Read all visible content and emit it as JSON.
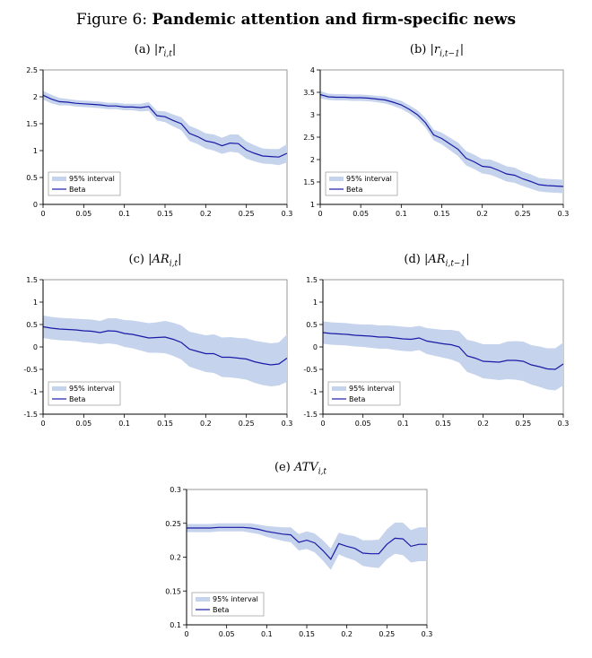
{
  "figure": {
    "label": "Figure 6:",
    "title": "Pandemic attention and firm-specific news"
  },
  "panels": [
    {
      "tag": "(a)",
      "bar": "|",
      "var": "r",
      "sub": "i,t"
    },
    {
      "tag": "(b)",
      "bar": "|",
      "var": "r",
      "sub": "i,t−1"
    },
    {
      "tag": "(c)",
      "bar": "|",
      "var": "AR",
      "sub": "i,t"
    },
    {
      "tag": "(d)",
      "bar": "|",
      "var": "AR",
      "sub": "i,t−1"
    },
    {
      "tag": "(e)",
      "bar": "",
      "var": "ATV",
      "sub": "i,t"
    }
  ],
  "chart_data": [
    {
      "type": "line",
      "title": "(a) |r_{i,t}|",
      "xlim": [
        0,
        0.3
      ],
      "ylim": [
        0,
        2.5
      ],
      "xticks": [
        "0",
        "0.05",
        "0.1",
        "0.15",
        "0.2",
        "0.25",
        "0.3"
      ],
      "yticks": [
        "0",
        "0.5",
        "1",
        "1.5",
        "2",
        "2.5"
      ],
      "x": [
        0,
        0.01,
        0.02,
        0.03,
        0.04,
        0.05,
        0.06,
        0.07,
        0.08,
        0.09,
        0.1,
        0.11,
        0.12,
        0.13,
        0.14,
        0.15,
        0.16,
        0.17,
        0.18,
        0.19,
        0.2,
        0.21,
        0.22,
        0.23,
        0.24,
        0.25,
        0.26,
        0.27,
        0.28,
        0.29,
        0.3
      ],
      "series": [
        {
          "name": "Beta",
          "values": [
            2.03,
            1.96,
            1.91,
            1.9,
            1.88,
            1.87,
            1.86,
            1.85,
            1.83,
            1.83,
            1.81,
            1.81,
            1.8,
            1.82,
            1.65,
            1.63,
            1.56,
            1.5,
            1.32,
            1.26,
            1.18,
            1.15,
            1.09,
            1.14,
            1.13,
            1.01,
            0.95,
            0.9,
            0.89,
            0.88,
            0.95
          ]
        },
        {
          "name": "95% interval",
          "lower": [
            1.95,
            1.88,
            1.84,
            1.84,
            1.82,
            1.81,
            1.8,
            1.79,
            1.77,
            1.77,
            1.75,
            1.75,
            1.73,
            1.74,
            1.56,
            1.53,
            1.45,
            1.38,
            1.18,
            1.12,
            1.04,
            1.0,
            0.94,
            0.98,
            0.96,
            0.85,
            0.8,
            0.76,
            0.75,
            0.73,
            0.78
          ],
          "upper": [
            2.11,
            2.04,
            1.98,
            1.96,
            1.94,
            1.93,
            1.92,
            1.91,
            1.89,
            1.89,
            1.87,
            1.87,
            1.87,
            1.9,
            1.74,
            1.73,
            1.67,
            1.62,
            1.46,
            1.4,
            1.32,
            1.3,
            1.24,
            1.3,
            1.3,
            1.17,
            1.1,
            1.04,
            1.03,
            1.03,
            1.12
          ]
        }
      ],
      "legend": [
        "95% interval",
        "Beta"
      ],
      "legend_position": "bottom-left"
    },
    {
      "type": "line",
      "title": "(b) |r_{i,t−1}|",
      "xlim": [
        0,
        0.3
      ],
      "ylim": [
        1,
        4
      ],
      "xticks": [
        "0",
        "0.05",
        "0.1",
        "0.15",
        "0.2",
        "0.25",
        "0.3"
      ],
      "yticks": [
        "1",
        "1.5",
        "2",
        "2.5",
        "3",
        "3.5",
        "4"
      ],
      "x": [
        0,
        0.01,
        0.02,
        0.03,
        0.04,
        0.05,
        0.06,
        0.07,
        0.08,
        0.09,
        0.1,
        0.11,
        0.12,
        0.13,
        0.14,
        0.15,
        0.16,
        0.17,
        0.18,
        0.19,
        0.2,
        0.21,
        0.22,
        0.23,
        0.24,
        0.25,
        0.26,
        0.27,
        0.28,
        0.29,
        0.3
      ],
      "series": [
        {
          "name": "Beta",
          "values": [
            3.45,
            3.4,
            3.39,
            3.39,
            3.38,
            3.38,
            3.37,
            3.35,
            3.33,
            3.28,
            3.22,
            3.12,
            3.0,
            2.82,
            2.55,
            2.47,
            2.35,
            2.23,
            2.03,
            1.95,
            1.85,
            1.83,
            1.76,
            1.68,
            1.65,
            1.57,
            1.51,
            1.44,
            1.42,
            1.41,
            1.4
          ]
        },
        {
          "name": "95% interval",
          "lower": [
            3.37,
            3.33,
            3.32,
            3.32,
            3.31,
            3.31,
            3.3,
            3.28,
            3.25,
            3.2,
            3.13,
            3.03,
            2.9,
            2.71,
            2.43,
            2.34,
            2.21,
            2.08,
            1.87,
            1.79,
            1.69,
            1.66,
            1.59,
            1.51,
            1.48,
            1.41,
            1.35,
            1.29,
            1.27,
            1.26,
            1.25
          ]
        },
        {
          "name": "95% interval upper",
          "upper": [
            3.53,
            3.47,
            3.46,
            3.46,
            3.45,
            3.45,
            3.44,
            3.42,
            3.41,
            3.36,
            3.31,
            3.21,
            3.1,
            2.93,
            2.67,
            2.6,
            2.49,
            2.38,
            2.19,
            2.11,
            2.01,
            2.0,
            1.93,
            1.85,
            1.82,
            1.73,
            1.67,
            1.59,
            1.57,
            1.56,
            1.55
          ]
        }
      ],
      "legend": [
        "95% interval",
        "Beta"
      ],
      "legend_position": "bottom-left"
    },
    {
      "type": "line",
      "title": "(c) |AR_{i,t}|",
      "xlim": [
        0,
        0.3
      ],
      "ylim": [
        -1.5,
        1.5
      ],
      "xticks": [
        "0",
        "0.05",
        "0.1",
        "0.15",
        "0.2",
        "0.25",
        "0.3"
      ],
      "yticks": [
        "-1.5",
        "-1",
        "-0.5",
        "0",
        "0.5",
        "1",
        "1.5"
      ],
      "x": [
        0,
        0.01,
        0.02,
        0.03,
        0.04,
        0.05,
        0.06,
        0.07,
        0.08,
        0.09,
        0.1,
        0.11,
        0.12,
        0.13,
        0.14,
        0.15,
        0.16,
        0.17,
        0.18,
        0.19,
        0.2,
        0.21,
        0.22,
        0.23,
        0.24,
        0.25,
        0.26,
        0.27,
        0.28,
        0.29,
        0.3
      ],
      "series": [
        {
          "name": "Beta",
          "values": [
            0.45,
            0.42,
            0.4,
            0.39,
            0.38,
            0.36,
            0.35,
            0.32,
            0.36,
            0.35,
            0.3,
            0.28,
            0.24,
            0.2,
            0.21,
            0.22,
            0.17,
            0.1,
            -0.05,
            -0.1,
            -0.15,
            -0.15,
            -0.23,
            -0.23,
            -0.25,
            -0.27,
            -0.33,
            -0.37,
            -0.4,
            -0.38,
            -0.25
          ]
        },
        {
          "name": "95% interval",
          "lower": [
            0.2,
            0.17,
            0.15,
            0.14,
            0.13,
            0.1,
            0.09,
            0.06,
            0.08,
            0.06,
            0.0,
            -0.03,
            -0.08,
            -0.13,
            -0.13,
            -0.14,
            -0.2,
            -0.28,
            -0.44,
            -0.5,
            -0.56,
            -0.58,
            -0.67,
            -0.68,
            -0.7,
            -0.73,
            -0.8,
            -0.85,
            -0.88,
            -0.86,
            -0.78
          ]
        },
        {
          "name": "95% interval upper",
          "upper": [
            0.7,
            0.67,
            0.65,
            0.64,
            0.63,
            0.62,
            0.61,
            0.58,
            0.64,
            0.64,
            0.6,
            0.59,
            0.56,
            0.53,
            0.55,
            0.58,
            0.54,
            0.48,
            0.34,
            0.3,
            0.26,
            0.28,
            0.21,
            0.22,
            0.2,
            0.19,
            0.14,
            0.11,
            0.08,
            0.1,
            0.28
          ]
        }
      ],
      "legend": [
        "95% interval",
        "Beta"
      ],
      "legend_position": "bottom-left"
    },
    {
      "type": "line",
      "title": "(d) |AR_{i,t−1}|",
      "xlim": [
        0,
        0.3
      ],
      "ylim": [
        -1.5,
        1.5
      ],
      "xticks": [
        "0",
        "0.05",
        "0.1",
        "0.15",
        "0.2",
        "0.25",
        "0.3"
      ],
      "yticks": [
        "-1.5",
        "-1",
        "-0.5",
        "0",
        "0.5",
        "1",
        "1.5"
      ],
      "x": [
        0,
        0.01,
        0.02,
        0.03,
        0.04,
        0.05,
        0.06,
        0.07,
        0.08,
        0.09,
        0.1,
        0.11,
        0.12,
        0.13,
        0.14,
        0.15,
        0.16,
        0.17,
        0.18,
        0.19,
        0.2,
        0.21,
        0.22,
        0.23,
        0.24,
        0.25,
        0.26,
        0.27,
        0.28,
        0.29,
        0.3
      ],
      "series": [
        {
          "name": "Beta",
          "values": [
            0.32,
            0.3,
            0.29,
            0.28,
            0.26,
            0.25,
            0.24,
            0.22,
            0.22,
            0.2,
            0.18,
            0.17,
            0.2,
            0.13,
            0.1,
            0.07,
            0.05,
            0.0,
            -0.2,
            -0.25,
            -0.32,
            -0.33,
            -0.34,
            -0.3,
            -0.3,
            -0.32,
            -0.4,
            -0.44,
            -0.49,
            -0.5,
            -0.38
          ]
        },
        {
          "name": "95% interval",
          "lower": [
            0.07,
            0.05,
            0.04,
            0.03,
            0.01,
            0.0,
            -0.02,
            -0.04,
            -0.04,
            -0.07,
            -0.09,
            -0.1,
            -0.07,
            -0.16,
            -0.2,
            -0.24,
            -0.28,
            -0.35,
            -0.56,
            -0.62,
            -0.7,
            -0.72,
            -0.74,
            -0.72,
            -0.73,
            -0.76,
            -0.84,
            -0.89,
            -0.95,
            -0.97,
            -0.86
          ]
        },
        {
          "name": "95% interval upper",
          "upper": [
            0.57,
            0.55,
            0.54,
            0.53,
            0.51,
            0.5,
            0.5,
            0.48,
            0.48,
            0.47,
            0.45,
            0.44,
            0.47,
            0.42,
            0.4,
            0.38,
            0.38,
            0.35,
            0.16,
            0.12,
            0.06,
            0.06,
            0.06,
            0.12,
            0.13,
            0.12,
            0.04,
            0.01,
            -0.03,
            -0.03,
            0.1
          ]
        }
      ],
      "legend": [
        "95% interval",
        "Beta"
      ],
      "legend_position": "bottom-left"
    },
    {
      "type": "line",
      "title": "(e) ATV_{i,t}",
      "xlim": [
        0,
        0.3
      ],
      "ylim": [
        0.1,
        0.3
      ],
      "xticks": [
        "0",
        "0.05",
        "0.1",
        "0.15",
        "0.2",
        "0.25",
        "0.3"
      ],
      "yticks": [
        "0.1",
        "0.15",
        "0.2",
        "0.25",
        "0.3"
      ],
      "x": [
        0,
        0.01,
        0.02,
        0.03,
        0.04,
        0.05,
        0.06,
        0.07,
        0.08,
        0.09,
        0.1,
        0.11,
        0.12,
        0.13,
        0.14,
        0.15,
        0.16,
        0.17,
        0.18,
        0.19,
        0.2,
        0.21,
        0.22,
        0.23,
        0.24,
        0.25,
        0.26,
        0.27,
        0.28,
        0.29,
        0.3
      ],
      "series": [
        {
          "name": "Beta",
          "values": [
            0.243,
            0.243,
            0.243,
            0.243,
            0.244,
            0.244,
            0.244,
            0.244,
            0.243,
            0.241,
            0.238,
            0.236,
            0.234,
            0.233,
            0.222,
            0.225,
            0.221,
            0.21,
            0.197,
            0.22,
            0.216,
            0.213,
            0.206,
            0.205,
            0.205,
            0.219,
            0.228,
            0.227,
            0.216,
            0.219,
            0.219
          ]
        },
        {
          "name": "95% interval",
          "lower": [
            0.237,
            0.237,
            0.237,
            0.237,
            0.238,
            0.238,
            0.238,
            0.238,
            0.236,
            0.234,
            0.23,
            0.227,
            0.224,
            0.222,
            0.21,
            0.212,
            0.207,
            0.195,
            0.181,
            0.204,
            0.199,
            0.195,
            0.187,
            0.185,
            0.184,
            0.197,
            0.205,
            0.203,
            0.192,
            0.194,
            0.194
          ]
        },
        {
          "name": "95% interval upper",
          "upper": [
            0.249,
            0.249,
            0.249,
            0.249,
            0.25,
            0.25,
            0.25,
            0.25,
            0.25,
            0.248,
            0.246,
            0.245,
            0.244,
            0.244,
            0.234,
            0.238,
            0.235,
            0.225,
            0.213,
            0.236,
            0.233,
            0.231,
            0.225,
            0.225,
            0.226,
            0.241,
            0.251,
            0.251,
            0.24,
            0.244,
            0.244
          ]
        }
      ],
      "legend": [
        "95% interval",
        "Beta"
      ],
      "legend_position": "bottom-left"
    }
  ],
  "colors": {
    "line": "#1a1aa6",
    "band": "#c5d3ec",
    "axis": "#000000",
    "frame": "#808080"
  }
}
